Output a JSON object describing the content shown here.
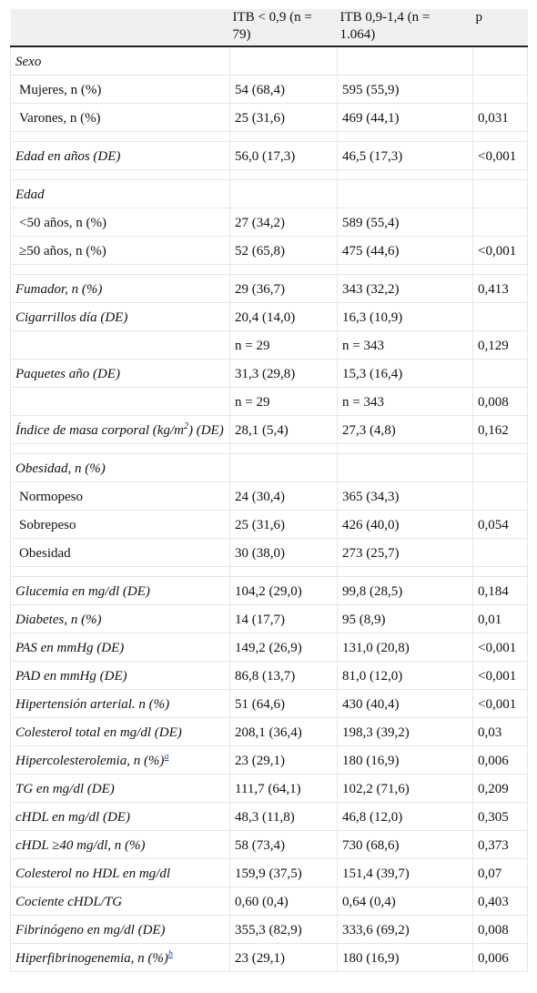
{
  "table": {
    "header": [
      null,
      "ITB < 0,9 (n = 79)",
      "ITB 0,9-1,4 (n = 1.064)",
      "p"
    ],
    "groups": [
      [
        [
          "Sexo",
          null,
          null,
          null
        ],
        [
          "Mujeres, n (%)",
          "54 (68,4)",
          "595 (55,9)",
          null
        ],
        [
          "Varones, n (%)",
          "25 (31,6)",
          "469 (44,1)",
          "0,031"
        ]
      ],
      [
        [
          "Edad en años (DE)",
          "56,0 (17,3)",
          "46,5 (17,3)",
          "<0,001"
        ]
      ],
      [
        [
          "Edad",
          null,
          null,
          null
        ],
        [
          "<50 años, n (%)",
          "27 (34,2)",
          "589 (55,4)",
          null
        ],
        [
          "≥50 años, n (%)",
          "52 (65,8)",
          "475 (44,6)",
          "<0,001"
        ]
      ],
      [
        [
          "Fumador, n (%)",
          "29 (36,7)",
          "343 (32,2)",
          "0,413"
        ],
        [
          "Cigarrillos día (DE)",
          "20,4 (14,0)",
          "16,3 (10,9)",
          null
        ],
        [
          null,
          "n = 29",
          "n = 343",
          "0,129"
        ],
        [
          "Paquetes año (DE)",
          "31,3 (29,8)",
          "15,3 (16,4)",
          null
        ],
        [
          null,
          "n = 29",
          "n = 343",
          "0,008"
        ],
        [
          {
            "text": "Índice de masa corporal (kg/m",
            "sup": "2",
            "after": ") (DE)"
          },
          "28,1 (5,4)",
          "27,3 (4,8)",
          "0,162"
        ]
      ],
      [
        [
          "Obesidad, n (%)",
          null,
          null,
          null
        ],
        [
          "Normopeso",
          "24 (30,4)",
          "365 (34,3)",
          null
        ],
        [
          "Sobrepeso",
          "25 (31,6)",
          "426 (40,0)",
          "0,054"
        ],
        [
          "Obesidad",
          "30 (38,0)",
          "273 (25,7)",
          null
        ]
      ],
      [
        [
          "Glucemia en mg/dl (DE)",
          "104,2 (29,0)",
          "99,8 (28,5)",
          "0,184"
        ],
        [
          "Diabetes, n (%)",
          "14 (17,7)",
          "95 (8,9)",
          "0,01"
        ],
        [
          "PAS en mmHg (DE)",
          "149,2 (26,9)",
          "131,0 (20,8)",
          "<0,001"
        ],
        [
          "PAD en mmHg (DE)",
          "86,8 (13,7)",
          "81,0 (12,0)",
          "<0,001"
        ],
        [
          "Hipertensión arterial. n (%)",
          "51 (64,6)",
          "430 (40,4)",
          "<0,001"
        ],
        [
          "Colesterol total en mg/dl (DE)",
          "208,1 (36,4)",
          "198,3 (39,2)",
          "0,03"
        ],
        [
          {
            "text": "Hipercolesterolemia, n (%)",
            "sup": "a"
          },
          "23 (29,1)",
          "180 (16,9)",
          "0,006"
        ],
        [
          "TG en mg/dl (DE)",
          "111,7 (64,1)",
          "102,2 (71,6)",
          "0,209"
        ],
        [
          "cHDL en mg/dl (DE)",
          "48,3 (11,8)",
          "46,8 (12,0)",
          "0,305"
        ],
        [
          "cHDL ≥40 mg/dl, n (%)",
          "58 (73,4)",
          "730 (68,6)",
          "0,373"
        ],
        [
          "Colesterol no HDL en mg/dl",
          "159,9 (37,5)",
          "151,4 (39,7)",
          "0,07"
        ],
        [
          "Cociente cHDL/TG",
          "0,60 (0,4)",
          "0,64 (0,4)",
          "0,403"
        ],
        [
          "Fibrinógeno en mg/dl (DE)",
          "355,3 (82,9)",
          "333,6 (69,2)",
          "0,008"
        ],
        [
          {
            "text": "Hiperfibrinogenemia, n (%)",
            "sup": "b"
          },
          "23 (29,1)",
          "180 (16,9)",
          "0,006"
        ]
      ]
    ]
  }
}
